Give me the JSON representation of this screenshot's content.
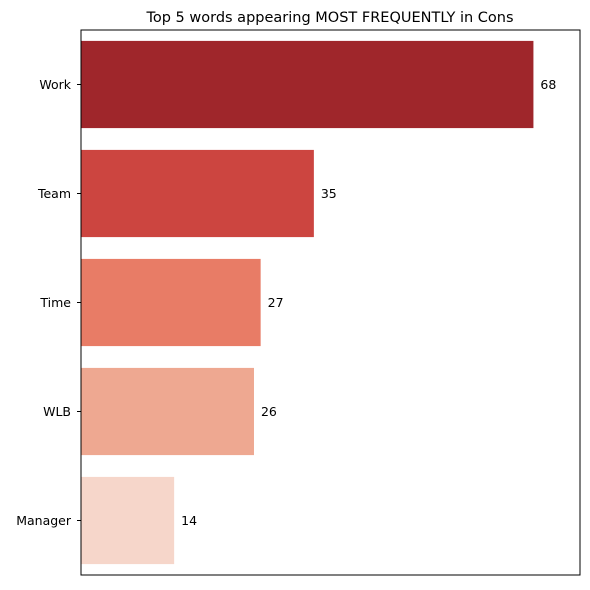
{
  "chart_data": {
    "type": "bar",
    "orientation": "horizontal",
    "title": "Top 5 words appearing MOST FREQUENTLY in Cons",
    "xlabel": "",
    "ylabel": "",
    "categories": [
      "Work",
      "Team",
      "Time",
      "WLB",
      "Manager"
    ],
    "values": [
      68,
      35,
      27,
      26,
      14
    ],
    "colors": [
      "#9f262b",
      "#cc4540",
      "#e87c66",
      "#eea891",
      "#f6d6ca"
    ],
    "xlim": [
      0,
      75
    ],
    "x_ticks_visible": false,
    "grid": false,
    "legend": "none"
  }
}
